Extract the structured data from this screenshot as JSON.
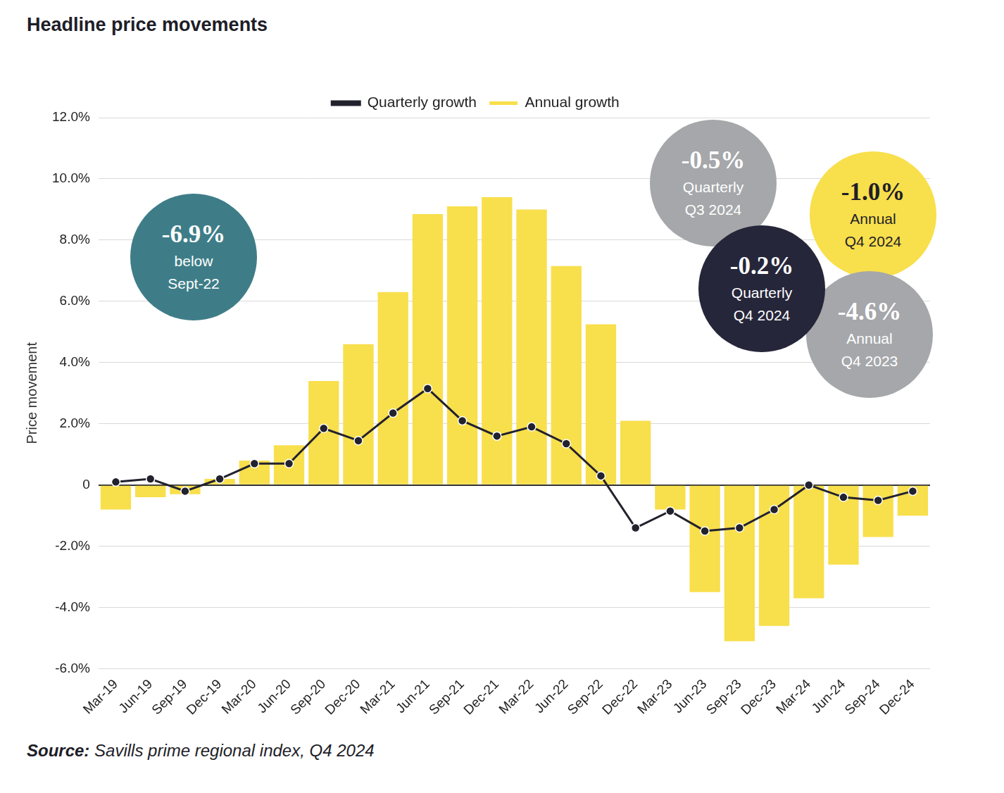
{
  "chart_data": {
    "type": "bar",
    "title": "Headline price movements",
    "source_label": "Source:",
    "source": "Savills prime regional index, Q4 2024",
    "y_label": "Price movement",
    "categories": [
      "Mar-19",
      "Jun-19",
      "Sep-19",
      "Dec-19",
      "Mar-20",
      "Jun-20",
      "Sep-20",
      "Dec-20",
      "Mar-21",
      "Jun-21",
      "Sep-21",
      "Dec-21",
      "Mar-22",
      "Jun-22",
      "Sep-22",
      "Dec-22",
      "Mar-23",
      "Jun-23",
      "Sep-23",
      "Dec-23",
      "Mar-24",
      "Jun-24",
      "Sep-24",
      "Dec-24"
    ],
    "series": [
      {
        "name": "Quarterly growth",
        "type": "line",
        "color": "#22222e",
        "marker": "circle",
        "line_style": "solid",
        "values": [
          0.1,
          0.2,
          -0.2,
          0.2,
          0.7,
          0.7,
          1.85,
          1.45,
          2.35,
          3.15,
          2.1,
          1.6,
          1.9,
          1.35,
          0.3,
          -1.4,
          -0.85,
          -1.5,
          -1.4,
          -0.8,
          0.0,
          -0.4,
          -0.5,
          -0.2
        ]
      },
      {
        "name": "Annual growth",
        "type": "bar",
        "color": "#f8df4c",
        "values": [
          -0.8,
          -0.4,
          -0.3,
          0.2,
          0.8,
          1.3,
          3.4,
          4.6,
          6.3,
          8.85,
          9.1,
          9.4,
          9.0,
          7.15,
          5.25,
          2.1,
          -0.8,
          -3.5,
          -5.1,
          -4.6,
          -3.7,
          -2.6,
          -1.7,
          -1.0
        ]
      }
    ],
    "ylim": [
      -6,
      12
    ],
    "yticks": [
      {
        "value": -6,
        "label": "-6.0%"
      },
      {
        "value": -4,
        "label": "-4.0%"
      },
      {
        "value": -2,
        "label": "-2.0%"
      },
      0,
      {
        "value": 2,
        "label": "2.0%"
      },
      {
        "value": 4,
        "label": "4.0%"
      },
      {
        "value": 6,
        "label": "6.0%"
      },
      {
        "value": 8,
        "label": "8.0%"
      },
      {
        "value": 10,
        "label": "10.0%"
      },
      {
        "value": 12,
        "label": "12.0%"
      }
    ],
    "grid": true,
    "legend": "top",
    "annotations": [
      {
        "value": -6.9,
        "label": "-6.9%",
        "text": [
          "below",
          "Sept-22"
        ],
        "color": "#3e7d88"
      },
      {
        "value": -0.5,
        "label": "-0.5%",
        "text": [
          "Quarterly",
          "Q3 2024"
        ],
        "color": "#a5a7aa"
      },
      {
        "value": -1.0,
        "label": "-1.0%",
        "text": [
          "Annual",
          "Q4 2024"
        ],
        "color": "#f8df4c"
      },
      {
        "value": -4.6,
        "label": "-4.6%",
        "text": [
          "Annual",
          "Q4 2023"
        ],
        "color": "#a5a7aa"
      },
      {
        "value": -0.2,
        "label": "-0.2%",
        "text": [
          "Quarterly",
          "Q4 2024"
        ],
        "color": "#26263a"
      }
    ]
  }
}
